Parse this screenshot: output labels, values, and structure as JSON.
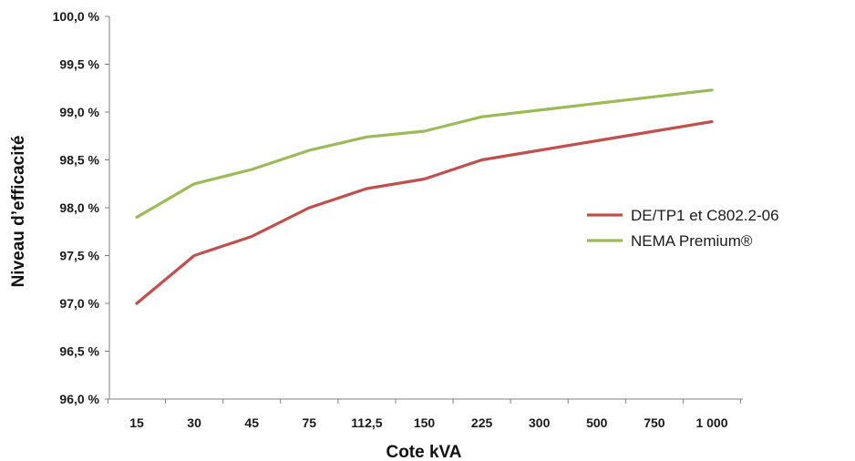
{
  "chart_data": {
    "type": "line",
    "categories": [
      "15",
      "30",
      "45",
      "75",
      "112,5",
      "150",
      "225",
      "300",
      "500",
      "750",
      "1 000"
    ],
    "series": [
      {
        "name": "DE/TP1 et C802.2-06",
        "color": "#c0504d",
        "values": [
          97.0,
          97.5,
          97.7,
          98.0,
          98.2,
          98.3,
          98.5,
          98.6,
          98.7,
          98.8,
          98.9
        ]
      },
      {
        "name": "NEMA Premium®",
        "color": "#9bbb59",
        "values": [
          97.9,
          98.25,
          98.4,
          98.6,
          98.74,
          98.8,
          98.95,
          99.02,
          99.09,
          99.16,
          99.23
        ]
      }
    ],
    "xlabel": "Cote kVA",
    "ylabel": "Niveau d’efficacité",
    "ylim": [
      96.0,
      100.0
    ],
    "yticks": [
      96.0,
      96.5,
      97.0,
      97.5,
      98.0,
      98.5,
      99.0,
      99.5,
      100.0
    ],
    "ytick_labels": [
      "96,0 %",
      "96,5 %",
      "97,0 %",
      "97,5 %",
      "98,0 %",
      "98,5 %",
      "99,0 %",
      "99,5 %",
      "100,0 %"
    ],
    "grid": false,
    "legend_position": "right"
  }
}
